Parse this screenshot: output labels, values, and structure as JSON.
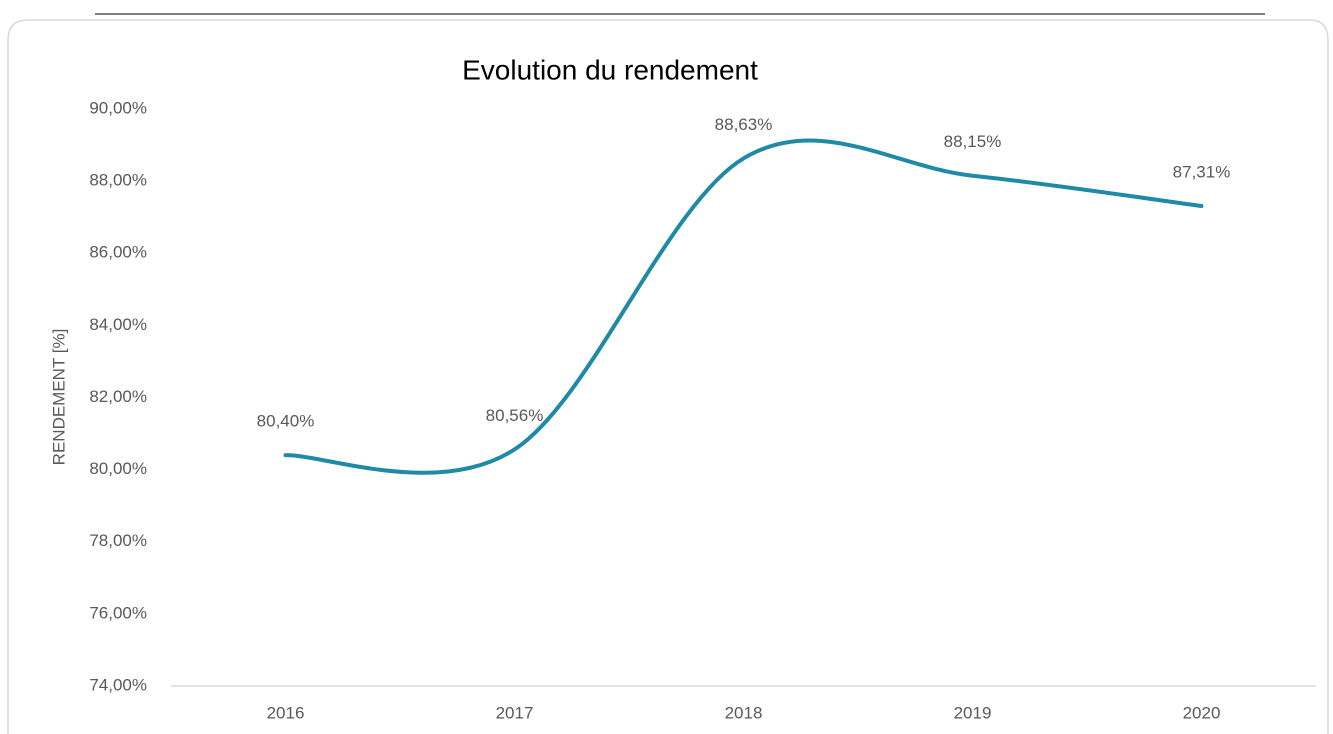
{
  "chart_data": {
    "type": "line",
    "title": "Evolution du rendement",
    "y_label": "RENDEMENT [%]",
    "categories": [
      "2016",
      "2017",
      "2018",
      "2019",
      "2020"
    ],
    "series": [
      {
        "name": "Rendement",
        "color": "#1f8aa5",
        "values": [
          80.4,
          80.56,
          88.63,
          88.15,
          87.31
        ],
        "value_labels": [
          "80,40%",
          "80,56%",
          "88,63%",
          "88,15%",
          "87,31%"
        ]
      }
    ],
    "ylim": [
      74,
      90
    ],
    "yticks": [
      {
        "value": 74,
        "label": "74,00%"
      },
      {
        "value": 76,
        "label": "76,00%"
      },
      {
        "value": 78,
        "label": "78,00%"
      },
      {
        "value": 80,
        "label": "80,00%"
      },
      {
        "value": 82,
        "label": "82,00%"
      },
      {
        "value": 84,
        "label": "84,00%"
      },
      {
        "value": 86,
        "label": "86,00%"
      },
      {
        "value": 88,
        "label": "88,00%"
      },
      {
        "value": 90,
        "label": "90,00%"
      }
    ],
    "grid": false,
    "smooth": true
  }
}
